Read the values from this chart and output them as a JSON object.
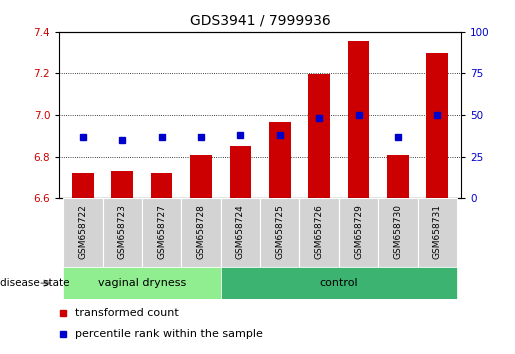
{
  "title": "GDS3941 / 7999936",
  "samples": [
    "GSM658722",
    "GSM658723",
    "GSM658727",
    "GSM658728",
    "GSM658724",
    "GSM658725",
    "GSM658726",
    "GSM658729",
    "GSM658730",
    "GSM658731"
  ],
  "red_values": [
    6.72,
    6.73,
    6.72,
    6.81,
    6.85,
    6.965,
    7.195,
    7.355,
    6.81,
    7.3
  ],
  "blue_percentiles": [
    37,
    35,
    37,
    37,
    38,
    38,
    48,
    50,
    37,
    50
  ],
  "ylim_left": [
    6.6,
    7.4
  ],
  "ylim_right": [
    0,
    100
  ],
  "yticks_left": [
    6.6,
    6.8,
    7.0,
    7.2,
    7.4
  ],
  "yticks_right": [
    0,
    25,
    50,
    75,
    100
  ],
  "group1_label": "vaginal dryness",
  "group2_label": "control",
  "group1_count": 4,
  "group2_count": 6,
  "legend1": "transformed count",
  "legend2": "percentile rank within the sample",
  "disease_state_label": "disease state",
  "red_color": "#cc0000",
  "blue_color": "#0000cc",
  "bar_bottom": 6.6,
  "group1_bg": "#90EE90",
  "group2_bg": "#3CB371",
  "sample_bg": "#d3d3d3",
  "title_fontsize": 10,
  "tick_fontsize": 7.5,
  "label_fontsize": 8
}
